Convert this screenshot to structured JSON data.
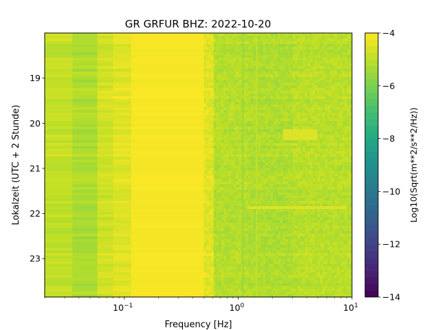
{
  "chart_data": {
    "type": "heatmap",
    "title": "GR GRFUR  BHZ: 2022-10-20",
    "xlabel": "Frequency [Hz]",
    "ylabel": "Lokalzeit (UTC + 2 Stunde)",
    "x_scale": "log",
    "xlim": [
      0.02,
      10
    ],
    "ylim": [
      18.0,
      23.85
    ],
    "y_inverted": true,
    "x_ticks": [
      {
        "value": 0.1,
        "base": "10",
        "exp": "−1"
      },
      {
        "value": 1,
        "base": "10",
        "exp": "0"
      },
      {
        "value": 10,
        "base": "10",
        "exp": "1"
      }
    ],
    "y_ticks": [
      {
        "value": 19,
        "label": "19"
      },
      {
        "value": 20,
        "label": "20"
      },
      {
        "value": 21,
        "label": "21"
      },
      {
        "value": 22,
        "label": "22"
      },
      {
        "value": 23,
        "label": "23"
      }
    ],
    "colorbar": {
      "label": "Log10(Sqrt(m**2/s**2/Hz))",
      "colormap": "viridis",
      "range": [
        -14,
        -4
      ],
      "ticks": [
        {
          "value": -4,
          "label": "−4"
        },
        {
          "value": -6,
          "label": "−6"
        },
        {
          "value": -8,
          "label": "−8"
        },
        {
          "value": -10,
          "label": "−10"
        },
        {
          "value": -12,
          "label": "−12"
        },
        {
          "value": -14,
          "label": "−14"
        }
      ]
    },
    "frequency_bands": [
      {
        "f_min": 0.02,
        "f_max": 0.035,
        "value": -4.9
      },
      {
        "f_min": 0.035,
        "f_max": 0.058,
        "value": -5.2
      },
      {
        "f_min": 0.058,
        "f_max": 0.08,
        "value": -4.7
      },
      {
        "f_min": 0.08,
        "f_max": 0.115,
        "value": -4.45
      },
      {
        "f_min": 0.115,
        "f_max": 0.5,
        "value": -4.1
      },
      {
        "f_min": 0.5,
        "f_max": 0.6,
        "value": -4.45
      },
      {
        "f_min": 0.6,
        "f_max": 1.2,
        "value": -5.1
      },
      {
        "f_min": 1.2,
        "f_max": 3.0,
        "value": -5.2
      },
      {
        "f_min": 3.0,
        "f_max": 10,
        "value": -5.05
      }
    ],
    "notable_features": [
      {
        "type": "narrow line",
        "frequency": 1.1,
        "value": -5.6
      },
      {
        "type": "narrow line",
        "frequency": 1.45,
        "value": -4.9
      },
      {
        "type": "patch",
        "time": 20.25,
        "f_min": 2.5,
        "f_max": 5,
        "value": -4.5
      },
      {
        "type": "streak",
        "time": 21.85,
        "f_min": 1.2,
        "f_max": 9,
        "value": -4.5
      }
    ]
  }
}
